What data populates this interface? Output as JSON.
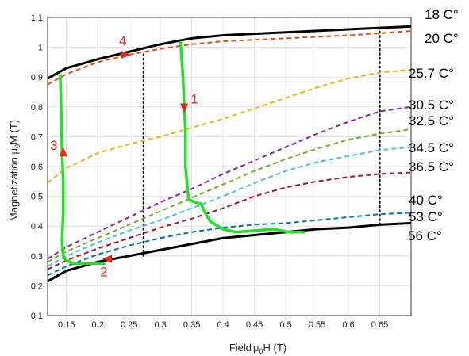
{
  "chart_data": {
    "type": "line",
    "xlabel": "Field",
    "xlabel_mu": "μ",
    "xlabel_sub": "0",
    "xlabel_tail": "H (T)",
    "ylabel": "Magnetization ",
    "ylabel_mu": "μ",
    "ylabel_sub": "0",
    "ylabel_tail": "M (T)",
    "xlim": [
      0.12,
      0.7
    ],
    "ylim": [
      0.1,
      1.1
    ],
    "xticks": [
      "0.15",
      "0.2",
      "0.25",
      "0.3",
      "0.35",
      "0.4",
      "0.45",
      "0.5",
      "0.55",
      "0.6",
      "0.65"
    ],
    "yticks": [
      "0.1",
      "0.2",
      "0.3",
      "0.4",
      "0.5",
      "0.6",
      "0.7",
      "0.8",
      "0.9",
      "1",
      "1.1"
    ],
    "grid": true,
    "series": [
      {
        "name": "18 C°",
        "color": "#000000",
        "style": "solid",
        "width": 3,
        "x": [
          0.12,
          0.15,
          0.2,
          0.25,
          0.3,
          0.35,
          0.4,
          0.45,
          0.5,
          0.55,
          0.6,
          0.65,
          0.7
        ],
        "y": [
          0.895,
          0.93,
          0.96,
          0.985,
          1.01,
          1.03,
          1.04,
          1.045,
          1.05,
          1.055,
          1.06,
          1.065,
          1.07
        ]
      },
      {
        "name": "20 C°",
        "color": "#d95319",
        "style": "dashed",
        "width": 2,
        "x": [
          0.12,
          0.15,
          0.2,
          0.25,
          0.3,
          0.35,
          0.4,
          0.45,
          0.5,
          0.55,
          0.6,
          0.65,
          0.7
        ],
        "y": [
          0.875,
          0.91,
          0.95,
          0.975,
          0.995,
          1.01,
          1.02,
          1.025,
          1.03,
          1.035,
          1.04,
          1.047,
          1.055
        ]
      },
      {
        "name": "25.7 C°",
        "color": "#edb120",
        "style": "dashed",
        "width": 2,
        "x": [
          0.12,
          0.15,
          0.2,
          0.25,
          0.3,
          0.35,
          0.4,
          0.45,
          0.5,
          0.55,
          0.6,
          0.65,
          0.7
        ],
        "y": [
          0.545,
          0.595,
          0.645,
          0.675,
          0.7,
          0.73,
          0.76,
          0.795,
          0.83,
          0.865,
          0.895,
          0.915,
          0.925
        ]
      },
      {
        "name": "30.5 C°",
        "color": "#7e2f8e",
        "style": "dashed",
        "width": 2,
        "x": [
          0.12,
          0.15,
          0.2,
          0.25,
          0.3,
          0.35,
          0.4,
          0.45,
          0.5,
          0.55,
          0.6,
          0.65,
          0.7
        ],
        "y": [
          0.29,
          0.33,
          0.38,
          0.43,
          0.48,
          0.525,
          0.575,
          0.62,
          0.665,
          0.71,
          0.75,
          0.785,
          0.8
        ]
      },
      {
        "name": "32.5 C°",
        "color": "#77ac30",
        "style": "dashed",
        "width": 2,
        "x": [
          0.12,
          0.15,
          0.2,
          0.25,
          0.3,
          0.35,
          0.4,
          0.45,
          0.5,
          0.55,
          0.6,
          0.65,
          0.7
        ],
        "y": [
          0.28,
          0.315,
          0.36,
          0.405,
          0.45,
          0.495,
          0.54,
          0.585,
          0.625,
          0.66,
          0.69,
          0.71,
          0.725
        ]
      },
      {
        "name": "34.5 C°",
        "color": "#4dbeee",
        "style": "dashed",
        "width": 2,
        "x": [
          0.12,
          0.15,
          0.2,
          0.25,
          0.3,
          0.35,
          0.4,
          0.45,
          0.5,
          0.55,
          0.6,
          0.65,
          0.7
        ],
        "y": [
          0.265,
          0.3,
          0.345,
          0.385,
          0.42,
          0.46,
          0.5,
          0.545,
          0.585,
          0.615,
          0.635,
          0.655,
          0.665
        ]
      },
      {
        "name": "36.5 C°",
        "color": "#a2142f",
        "style": "dashed",
        "width": 2,
        "x": [
          0.12,
          0.15,
          0.2,
          0.25,
          0.3,
          0.35,
          0.4,
          0.45,
          0.5,
          0.55,
          0.6,
          0.65,
          0.7
        ],
        "y": [
          0.255,
          0.285,
          0.325,
          0.36,
          0.395,
          0.425,
          0.46,
          0.5,
          0.53,
          0.55,
          0.565,
          0.575,
          0.58
        ]
      },
      {
        "name": "40 C°",
        "color": "#0072bd",
        "style": "dashed",
        "width": 2,
        "x": [
          0.12,
          0.15,
          0.2,
          0.25,
          0.3,
          0.35,
          0.4,
          0.45,
          0.5,
          0.55,
          0.6,
          0.65,
          0.7
        ],
        "y": [
          0.235,
          0.265,
          0.305,
          0.335,
          0.36,
          0.38,
          0.395,
          0.405,
          0.41,
          0.42,
          0.43,
          0.44,
          0.445
        ]
      },
      {
        "name": "53 C°",
        "color": "#000000",
        "style": "solid",
        "width": 3,
        "x": [
          0.12,
          0.15,
          0.2,
          0.25,
          0.3,
          0.35,
          0.4,
          0.45,
          0.5,
          0.55,
          0.6,
          0.65,
          0.7
        ],
        "y": [
          0.215,
          0.25,
          0.28,
          0.3,
          0.32,
          0.34,
          0.36,
          0.37,
          0.38,
          0.39,
          0.395,
          0.405,
          0.41
        ]
      }
    ],
    "extra_labels": [
      "56 C°"
    ],
    "path": {
      "color": "#22e022",
      "x": [
        0.212,
        0.16,
        0.15,
        0.145,
        0.143,
        0.145,
        0.145,
        0.143,
        0.142,
        0.141,
        0.14
      ],
      "y": [
        0.275,
        0.275,
        0.285,
        0.3,
        0.35,
        0.45,
        0.55,
        0.65,
        0.75,
        0.85,
        0.91
      ],
      "x2": [
        0.332,
        0.336,
        0.338,
        0.34,
        0.34,
        0.345,
        0.355,
        0.365,
        0.37,
        0.38,
        0.4,
        0.42,
        0.45,
        0.48,
        0.505,
        0.53
      ],
      "y2": [
        1.02,
        0.9,
        0.8,
        0.72,
        0.6,
        0.49,
        0.48,
        0.475,
        0.45,
        0.415,
        0.39,
        0.38,
        0.385,
        0.39,
        0.38,
        0.38
      ]
    },
    "dotted_lines": [
      {
        "x": 0.273,
        "y0": 0.3,
        "y1": 0.985
      },
      {
        "x": 0.65,
        "y0": 0.405,
        "y1": 1.065
      }
    ],
    "arrows": [
      {
        "label": "1",
        "x": 0.338,
        "y": 0.79,
        "dir": "down"
      },
      {
        "label": "2",
        "x": 0.215,
        "y": 0.29,
        "dir": "left"
      },
      {
        "label": "3",
        "x": 0.145,
        "y": 0.65,
        "dir": "up"
      },
      {
        "label": "4",
        "x": 0.245,
        "y": 0.975,
        "dir": "right"
      }
    ]
  }
}
